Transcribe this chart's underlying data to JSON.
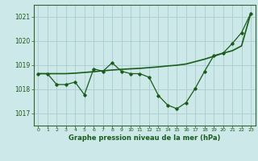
{
  "title": "Graphe pression niveau de la mer (hPa)",
  "bg_color": "#cce8e8",
  "grid_color": "#aacccc",
  "line_color": "#1a5c1a",
  "border_color": "#336633",
  "xlim": [
    -0.5,
    23.5
  ],
  "ylim": [
    1016.5,
    1021.5
  ],
  "yticks": [
    1017,
    1018,
    1019,
    1020,
    1021
  ],
  "xticks": [
    0,
    1,
    2,
    3,
    4,
    5,
    6,
    7,
    8,
    9,
    10,
    11,
    12,
    13,
    14,
    15,
    16,
    17,
    18,
    19,
    20,
    21,
    22,
    23
  ],
  "hours": [
    0,
    1,
    2,
    3,
    4,
    5,
    6,
    7,
    8,
    9,
    10,
    11,
    12,
    13,
    14,
    15,
    16,
    17,
    18,
    19,
    20,
    21,
    22,
    23
  ],
  "pressure_jagged": [
    1018.65,
    1018.65,
    1018.2,
    1018.2,
    1018.3,
    1017.78,
    1018.85,
    1018.75,
    1019.1,
    1018.75,
    1018.65,
    1018.65,
    1018.5,
    1017.75,
    1017.35,
    1017.2,
    1017.45,
    1018.05,
    1018.75,
    1019.4,
    1019.5,
    1019.9,
    1020.35,
    1021.15
  ],
  "pressure_trend": [
    1018.65,
    1018.65,
    1018.65,
    1018.65,
    1018.67,
    1018.7,
    1018.73,
    1018.77,
    1018.8,
    1018.83,
    1018.85,
    1018.87,
    1018.9,
    1018.93,
    1018.97,
    1019.0,
    1019.05,
    1019.15,
    1019.25,
    1019.37,
    1019.5,
    1019.6,
    1019.8,
    1021.15
  ]
}
